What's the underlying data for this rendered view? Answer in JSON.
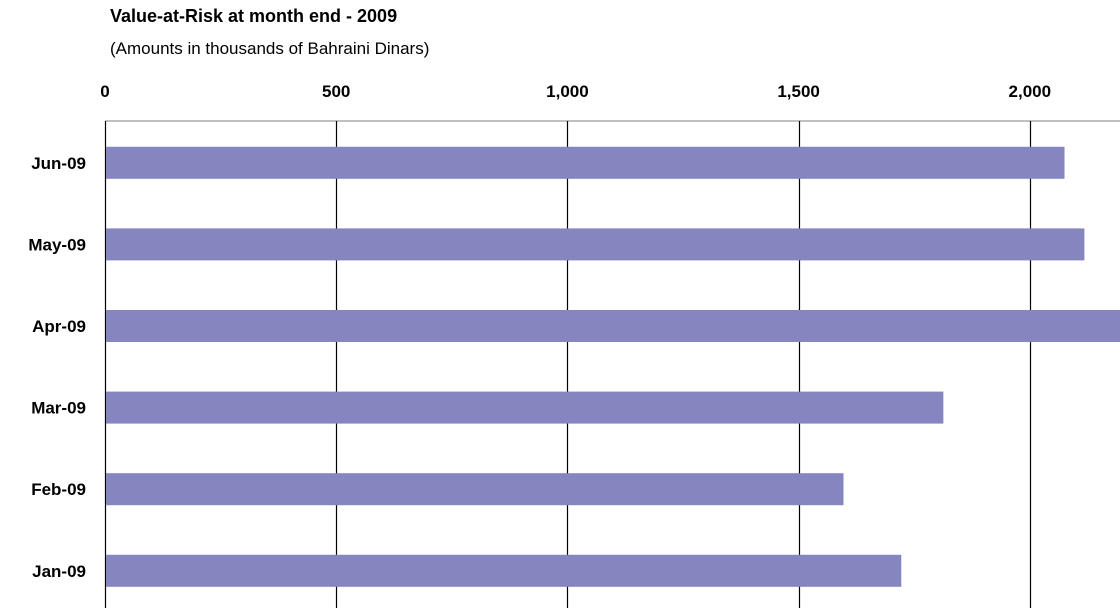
{
  "chart_data": {
    "type": "bar",
    "orientation": "horizontal",
    "title": "Value-at-Risk at month end - 2009",
    "subtitle": "(Amounts in thousands of Bahraini Dinars)",
    "categories": [
      "Jun-09",
      "May-09",
      "Apr-09",
      "Mar-09",
      "Feb-09",
      "Jan-09"
    ],
    "values": [
      2075,
      2118,
      2195,
      1813,
      1597,
      1722
    ],
    "xlim": [
      0,
      2195
    ],
    "ticks": [
      {
        "value": 0,
        "label": "0"
      },
      {
        "value": 500,
        "label": "500"
      },
      {
        "value": 1000,
        "label": "1,000"
      },
      {
        "value": 1500,
        "label": "1,500"
      },
      {
        "value": 2000,
        "label": "2,000"
      }
    ],
    "axis_position": "top",
    "grid": true,
    "legend": "none",
    "bar_color": "#8585c0"
  }
}
